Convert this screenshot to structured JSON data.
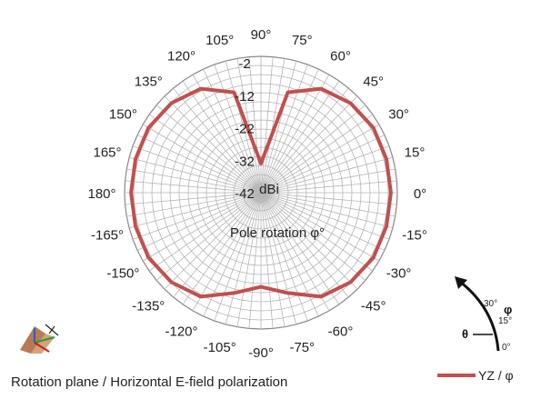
{
  "chart_data": {
    "type": "radar",
    "center_label": "dBi",
    "annotation": "Pole rotation φ°",
    "radial_ticks": [
      "-42",
      "-32",
      "-22",
      "-12",
      "-2"
    ],
    "radial_range": [
      -42,
      0
    ],
    "angle_labels": [
      "0°",
      "15°",
      "30°",
      "45°",
      "60°",
      "75°",
      "90°",
      "105°",
      "120°",
      "135°",
      "150°",
      "165°",
      "180°",
      "-165°",
      "-150°",
      "-135°",
      "-120°",
      "-105°",
      "-90°",
      "-75°",
      "-60°",
      "-45°",
      "-30°",
      "-15°"
    ],
    "angles": [
      0,
      15,
      30,
      45,
      60,
      75,
      90,
      105,
      120,
      135,
      150,
      165,
      180,
      -165,
      -150,
      -135,
      -120,
      -105,
      -90,
      -75,
      -60,
      -45,
      -30,
      -15
    ],
    "series": [
      {
        "name": "YZ / φ",
        "color": "#c0504d",
        "values": [
          -2,
          -2,
          -2,
          -3,
          -5,
          -10,
          -33,
          -10,
          -5,
          -3,
          -2,
          -2,
          -2,
          -2,
          -2,
          -3,
          -5,
          -10,
          -13,
          -10,
          -5,
          -3,
          -2,
          -2
        ]
      }
    ],
    "grid": true
  },
  "caption": "Rotation plane / Horizontal E-field polarization",
  "legend": {
    "label": "YZ / φ"
  },
  "rotation_icon": {
    "labels": [
      "30°",
      "15°",
      "0°"
    ],
    "phi": "φ",
    "theta": "θ"
  }
}
